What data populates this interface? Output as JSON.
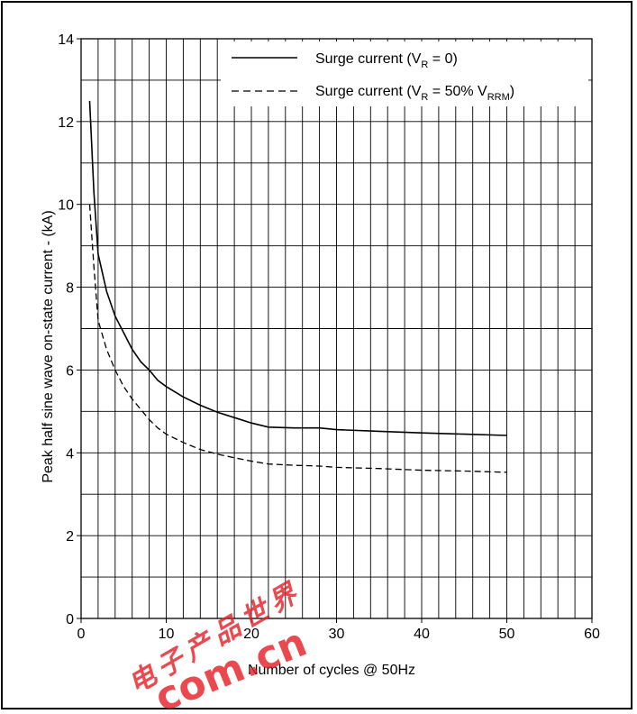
{
  "chart_data": {
    "type": "line",
    "title": "",
    "xlabel": "Number of cycles @ 50Hz",
    "ylabel": "Peak half sine wave on-state current - (kA)",
    "xlim": [
      0,
      60
    ],
    "ylim": [
      0,
      14
    ],
    "x_ticks": [
      "0",
      "10",
      "20",
      "30",
      "40",
      "50",
      "60"
    ],
    "y_ticks": [
      "0",
      "2",
      "4",
      "6",
      "8",
      "10",
      "12",
      "14"
    ],
    "grid": true,
    "legend_position": "top-right",
    "series": [
      {
        "name": "Surge current (VR = 0)",
        "legend_main": "Surge current (V",
        "legend_sub": "R",
        "legend_tail": " = 0)",
        "style": "solid",
        "x": [
          1,
          1.5,
          2,
          3,
          4,
          5,
          6,
          7,
          8,
          9,
          10,
          12,
          14,
          16,
          18,
          20,
          22,
          25,
          28,
          30,
          35,
          40,
          45,
          50
        ],
        "y": [
          12.5,
          10.3,
          8.8,
          7.9,
          7.3,
          6.9,
          6.5,
          6.2,
          6.0,
          5.75,
          5.6,
          5.35,
          5.15,
          4.98,
          4.85,
          4.72,
          4.62,
          4.6,
          4.6,
          4.56,
          4.52,
          4.48,
          4.45,
          4.42
        ],
        "color": "#000000"
      },
      {
        "name": "Surge current (VR = 50% VRRM)",
        "legend_main": "Surge current (V",
        "legend_sub": "R",
        "legend_tail": " = 50% V",
        "legend_sub2": "RRM",
        "legend_end": ")",
        "style": "dashed",
        "x": [
          1,
          1.5,
          2,
          3,
          4,
          5,
          6,
          7,
          8,
          9,
          10,
          12,
          14,
          16,
          18,
          20,
          22,
          25,
          28,
          30,
          35,
          40,
          45,
          50
        ],
        "y": [
          10.0,
          8.5,
          7.2,
          6.5,
          6.0,
          5.6,
          5.3,
          5.05,
          4.8,
          4.6,
          4.45,
          4.25,
          4.08,
          3.97,
          3.88,
          3.8,
          3.73,
          3.7,
          3.68,
          3.65,
          3.62,
          3.58,
          3.56,
          3.53
        ],
        "color": "#000000"
      }
    ]
  },
  "watermark": {
    "text_cn": "电子产品世界",
    "text_url": "com.cn",
    "color": "#e51e24"
  }
}
